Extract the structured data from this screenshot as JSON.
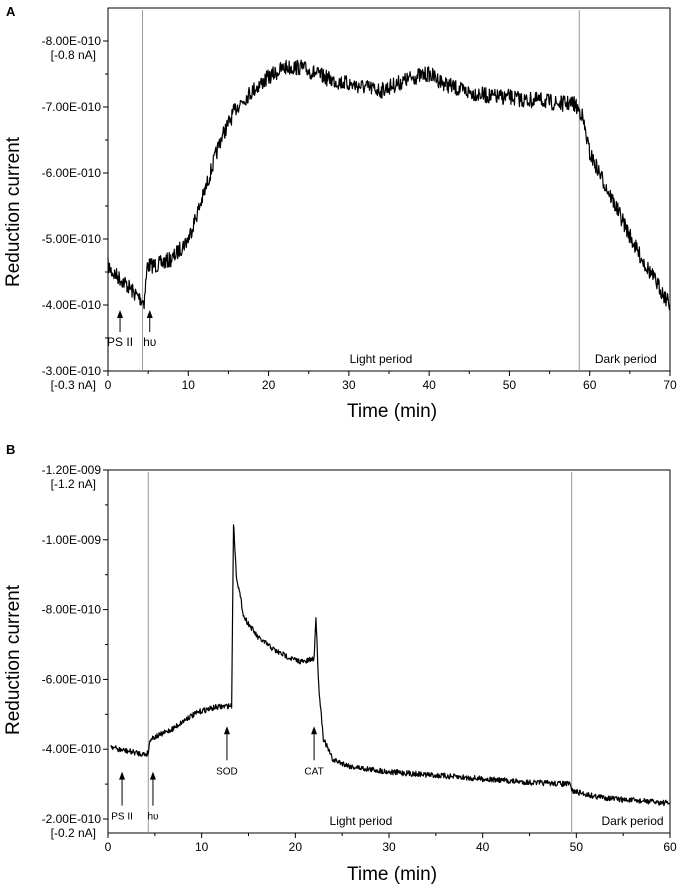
{
  "chart_data": [
    {
      "panel": "A",
      "type": "line",
      "xlabel": "Time (min)",
      "ylabel": "Reduction current",
      "xlim": [
        0,
        70
      ],
      "ylim": [
        -3e-10,
        -8.5e-10
      ],
      "x_ticks": [
        0,
        10,
        20,
        30,
        40,
        50,
        60,
        70
      ],
      "x_tick_labels": [
        "0",
        "10",
        "20",
        "30",
        "40",
        "50",
        "60",
        "70"
      ],
      "y_ticks": [
        -3e-10,
        -4e-10,
        -5e-10,
        -6e-10,
        -7e-10,
        -8e-10
      ],
      "y_tick_labels": [
        "-3.00E-010",
        "-4.00E-010",
        "-5.00E-010",
        "-6.00E-010",
        "-7.00E-010",
        "-8.00E-010"
      ],
      "y_sub_labels": [
        {
          "value": -8e-10,
          "text": "[-0.8 nA]"
        },
        {
          "value": -3e-10,
          "text": "[-0.3 nA]"
        }
      ],
      "grid": false,
      "series": [
        {
          "noise": 1.2e-11,
          "points": [
            [
              0,
              -4.6e-10
            ],
            [
              0.5,
              -4.5e-10
            ],
            [
              2,
              -4.35e-10
            ],
            [
              3.5,
              -4.15e-10
            ],
            [
              4.5,
              -4.05e-10
            ],
            [
              4.9,
              -4.6e-10
            ],
            [
              6,
              -4.6e-10
            ],
            [
              8,
              -4.7e-10
            ],
            [
              10,
              -5e-10
            ],
            [
              12,
              -5.7e-10
            ],
            [
              14,
              -6.5e-10
            ],
            [
              16,
              -7e-10
            ],
            [
              18,
              -7.25e-10
            ],
            [
              20,
              -7.45e-10
            ],
            [
              22,
              -7.6e-10
            ],
            [
              24,
              -7.6e-10
            ],
            [
              26,
              -7.5e-10
            ],
            [
              28,
              -7.4e-10
            ],
            [
              30,
              -7.35e-10
            ],
            [
              32,
              -7.3e-10
            ],
            [
              34,
              -7.25e-10
            ],
            [
              36,
              -7.35e-10
            ],
            [
              38,
              -7.45e-10
            ],
            [
              40,
              -7.5e-10
            ],
            [
              42,
              -7.35e-10
            ],
            [
              44,
              -7.25e-10
            ],
            [
              46,
              -7.2e-10
            ],
            [
              48,
              -7.15e-10
            ],
            [
              50,
              -7.15e-10
            ],
            [
              52,
              -7.1e-10
            ],
            [
              54,
              -7.1e-10
            ],
            [
              56,
              -7.05e-10
            ],
            [
              58,
              -7.05e-10
            ],
            [
              59,
              -6.9e-10
            ],
            [
              60,
              -6.3e-10
            ],
            [
              62,
              -5.8e-10
            ],
            [
              64,
              -5.3e-10
            ],
            [
              66,
              -4.8e-10
            ],
            [
              68,
              -4.4e-10
            ],
            [
              70,
              -4e-10
            ]
          ]
        }
      ],
      "dividers": [
        4.3,
        58.7
      ],
      "annotations": [
        {
          "text": "PS II",
          "x": 1.5,
          "y": -4e-10,
          "arrow": true,
          "size": "normal"
        },
        {
          "text": "hυ",
          "x": 5.2,
          "y": -4e-10,
          "arrow": true,
          "size": "normal"
        }
      ],
      "region_labels": [
        {
          "text": "Light period",
          "x": 34
        },
        {
          "text": "Dark period",
          "x": 64.5
        }
      ]
    },
    {
      "panel": "B",
      "type": "line",
      "xlabel": "Time (min)",
      "ylabel": "Reduction current",
      "xlim": [
        0,
        60
      ],
      "ylim": [
        -1.6e-10,
        -1.2e-09
      ],
      "x_ticks": [
        0,
        10,
        20,
        30,
        40,
        50,
        60
      ],
      "x_tick_labels": [
        "0",
        "10",
        "20",
        "30",
        "40",
        "50",
        "60"
      ],
      "y_ticks": [
        -2e-10,
        -4e-10,
        -6e-10,
        -8e-10,
        -1e-09,
        -1.2e-09
      ],
      "y_tick_labels": [
        "-2.00E-010",
        "-4.00E-010",
        "-6.00E-010",
        "-8.00E-010",
        "-1.00E-009",
        "-1.20E-009"
      ],
      "y_sub_labels": [
        {
          "value": -1.2e-09,
          "text": "[-1.2 nA]"
        },
        {
          "value": -2e-10,
          "text": "[-0.2 nA]"
        }
      ],
      "grid": false,
      "series": [
        {
          "noise": 8e-12,
          "points": [
            [
              0.3,
              -4.1e-10
            ],
            [
              1,
              -4e-10
            ],
            [
              2,
              -3.95e-10
            ],
            [
              3,
              -3.9e-10
            ],
            [
              4,
              -3.85e-10
            ],
            [
              4.3,
              -3.9e-10
            ],
            [
              4.5,
              -4.3e-10
            ],
            [
              5.5,
              -4.4e-10
            ],
            [
              7,
              -4.6e-10
            ],
            [
              8.5,
              -4.9e-10
            ],
            [
              10,
              -5.1e-10
            ],
            [
              11.5,
              -5.2e-10
            ],
            [
              13.2,
              -5.25e-10
            ],
            [
              13.4,
              -1.05e-09
            ],
            [
              13.7,
              -9e-10
            ],
            [
              14.5,
              -7.8e-10
            ],
            [
              16,
              -7.2e-10
            ],
            [
              18,
              -6.8e-10
            ],
            [
              20,
              -6.55e-10
            ],
            [
              21,
              -6.5e-10
            ],
            [
              22,
              -6.6e-10
            ],
            [
              22.2,
              -7.8e-10
            ],
            [
              22.5,
              -5.8e-10
            ],
            [
              23,
              -4.3e-10
            ],
            [
              24,
              -3.7e-10
            ],
            [
              26,
              -3.5e-10
            ],
            [
              30,
              -3.35e-10
            ],
            [
              35,
              -3.25e-10
            ],
            [
              40,
              -3.15e-10
            ],
            [
              45,
              -3.05e-10
            ],
            [
              49.3,
              -3e-10
            ],
            [
              49.6,
              -2.8e-10
            ],
            [
              52,
              -2.65e-10
            ],
            [
              55,
              -2.55e-10
            ],
            [
              58,
              -2.5e-10
            ],
            [
              60,
              -2.45e-10
            ]
          ]
        }
      ],
      "dividers": [
        4.3,
        49.5
      ],
      "annotations": [
        {
          "text": "PS II",
          "x": 1.5,
          "y": -3.5e-10,
          "arrow": true,
          "size": "small"
        },
        {
          "text": "hυ",
          "x": 4.8,
          "y": -3.5e-10,
          "arrow": true,
          "size": "small"
        },
        {
          "text": "SOD",
          "x": 12.7,
          "y": -4.8e-10,
          "arrow": true,
          "size": "small"
        },
        {
          "text": "CAT",
          "x": 22,
          "y": -4.8e-10,
          "arrow": true,
          "size": "small"
        }
      ],
      "region_labels": [
        {
          "text": "Light period",
          "x": 27
        },
        {
          "text": "Dark period",
          "x": 56
        }
      ]
    }
  ]
}
